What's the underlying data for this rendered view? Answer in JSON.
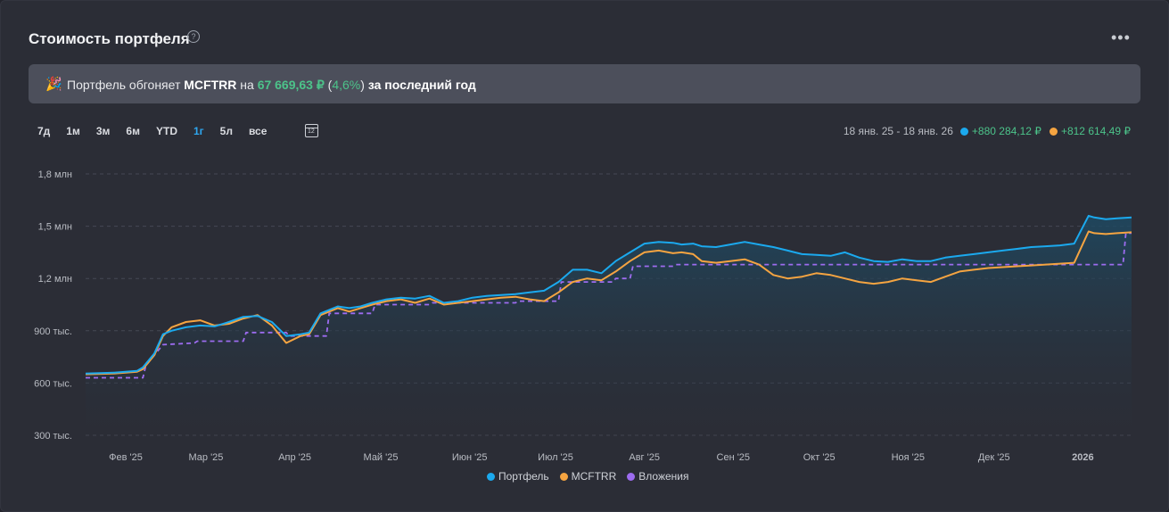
{
  "header": {
    "title": "Стоимость портфеля",
    "help": "?",
    "menu": "•••"
  },
  "banner": {
    "prefix": "Портфель обгоняет",
    "benchmark": "MCFTRR",
    "on": "на",
    "amount": "67 669,63 ₽",
    "open_paren": "(",
    "percent": "4,6%",
    "close_paren": ")",
    "suffix": "за последний год"
  },
  "ranges": [
    "7д",
    "1м",
    "3м",
    "6м",
    "YTD",
    "1г",
    "5л",
    "все"
  ],
  "active_range": "1г",
  "calendar_day": "12",
  "summary": {
    "period": "18 янв. 25 - 18 янв. 26",
    "portfolio_change": "+880 284,12 ₽",
    "benchmark_change": "+812 614,49 ₽"
  },
  "colors": {
    "portfolio": "#1ba9ee",
    "benchmark": "#f5a441",
    "investments": "#9d6cf0",
    "accent": "#2ea7f0",
    "positive": "#4cc38a"
  },
  "chart_data": {
    "type": "line",
    "y_ticks": [
      "300 тыс.",
      "600 тыс.",
      "900 тыс.",
      "1,2 млн",
      "1,5 млн",
      "1,8 млн"
    ],
    "y_tick_values": [
      300000,
      600000,
      900000,
      1200000,
      1500000,
      1800000
    ],
    "ylim": [
      250000,
      1850000
    ],
    "x_ticks": [
      "Фев '25",
      "Мар '25",
      "Апр '25",
      "Май '25",
      "Июн '25",
      "Июл '25",
      "Авг '25",
      "Сен '25",
      "Окт '25",
      "Ноя '25",
      "Дек '25",
      "2026"
    ],
    "x_tick_days": [
      14,
      42,
      73,
      103,
      134,
      164,
      195,
      226,
      256,
      287,
      317,
      348
    ],
    "xlim": [
      0,
      365
    ],
    "series": [
      {
        "name": "Портфель",
        "x": [
          0,
          10,
          18,
          20,
          24,
          27,
          30,
          35,
          40,
          45,
          50,
          55,
          60,
          65,
          70,
          75,
          78,
          82,
          85,
          88,
          92,
          96,
          100,
          105,
          110,
          115,
          120,
          125,
          130,
          135,
          140,
          145,
          150,
          155,
          160,
          165,
          170,
          175,
          180,
          185,
          190,
          195,
          200,
          205,
          208,
          212,
          215,
          220,
          225,
          230,
          235,
          240,
          245,
          250,
          255,
          260,
          265,
          270,
          275,
          280,
          285,
          290,
          295,
          300,
          305,
          310,
          315,
          320,
          325,
          330,
          335,
          340,
          345,
          350,
          352,
          356,
          360,
          365
        ],
        "values": [
          655000,
          660000,
          670000,
          690000,
          770000,
          880000,
          900000,
          920000,
          930000,
          925000,
          950000,
          980000,
          985000,
          950000,
          870000,
          880000,
          890000,
          1000000,
          1020000,
          1040000,
          1030000,
          1040000,
          1060000,
          1080000,
          1090000,
          1085000,
          1100000,
          1060000,
          1070000,
          1090000,
          1100000,
          1105000,
          1110000,
          1120000,
          1130000,
          1180000,
          1250000,
          1250000,
          1230000,
          1300000,
          1350000,
          1400000,
          1410000,
          1405000,
          1395000,
          1400000,
          1385000,
          1380000,
          1395000,
          1410000,
          1395000,
          1380000,
          1360000,
          1340000,
          1335000,
          1330000,
          1350000,
          1320000,
          1300000,
          1295000,
          1310000,
          1300000,
          1300000,
          1320000,
          1330000,
          1340000,
          1350000,
          1360000,
          1370000,
          1380000,
          1385000,
          1390000,
          1400000,
          1560000,
          1550000,
          1540000,
          1545000,
          1550000
        ]
      },
      {
        "name": "MCFTRR",
        "x": [
          0,
          10,
          18,
          20,
          24,
          27,
          30,
          35,
          40,
          45,
          50,
          55,
          60,
          65,
          70,
          75,
          78,
          82,
          85,
          88,
          92,
          96,
          100,
          105,
          110,
          115,
          120,
          125,
          130,
          135,
          140,
          145,
          150,
          155,
          160,
          165,
          170,
          175,
          180,
          185,
          190,
          195,
          200,
          205,
          208,
          212,
          215,
          220,
          225,
          230,
          235,
          240,
          245,
          250,
          255,
          260,
          265,
          270,
          275,
          280,
          285,
          290,
          295,
          300,
          305,
          310,
          315,
          320,
          325,
          330,
          335,
          340,
          345,
          350,
          352,
          356,
          360,
          365
        ],
        "values": [
          650000,
          655000,
          665000,
          680000,
          760000,
          870000,
          920000,
          950000,
          960000,
          930000,
          940000,
          970000,
          990000,
          930000,
          830000,
          870000,
          880000,
          990000,
          1010000,
          1030000,
          1010000,
          1030000,
          1050000,
          1070000,
          1080000,
          1060000,
          1085000,
          1050000,
          1060000,
          1070000,
          1080000,
          1090000,
          1095000,
          1080000,
          1070000,
          1120000,
          1180000,
          1200000,
          1190000,
          1240000,
          1300000,
          1350000,
          1360000,
          1345000,
          1350000,
          1340000,
          1300000,
          1290000,
          1300000,
          1310000,
          1280000,
          1220000,
          1200000,
          1210000,
          1230000,
          1220000,
          1200000,
          1180000,
          1170000,
          1180000,
          1200000,
          1190000,
          1180000,
          1210000,
          1240000,
          1250000,
          1260000,
          1265000,
          1270000,
          1275000,
          1280000,
          1285000,
          1290000,
          1470000,
          1460000,
          1455000,
          1460000,
          1465000
        ]
      },
      {
        "name": "Вложения",
        "x": [
          0,
          20,
          21,
          24,
          27,
          38,
          39,
          55,
          56,
          70,
          71,
          84,
          85,
          100,
          101,
          120,
          121,
          150,
          151,
          165,
          166,
          184,
          185,
          190,
          191,
          205,
          206,
          362,
          363,
          365
        ],
        "values": [
          630000,
          630000,
          700000,
          760000,
          820000,
          830000,
          840000,
          840000,
          890000,
          890000,
          870000,
          870000,
          1000000,
          1000000,
          1050000,
          1050000,
          1060000,
          1060000,
          1070000,
          1070000,
          1180000,
          1180000,
          1200000,
          1200000,
          1270000,
          1270000,
          1280000,
          1280000,
          1460000,
          1460000
        ]
      }
    ],
    "legend": "bottom-center",
    "grid": "horizontal dashed"
  }
}
